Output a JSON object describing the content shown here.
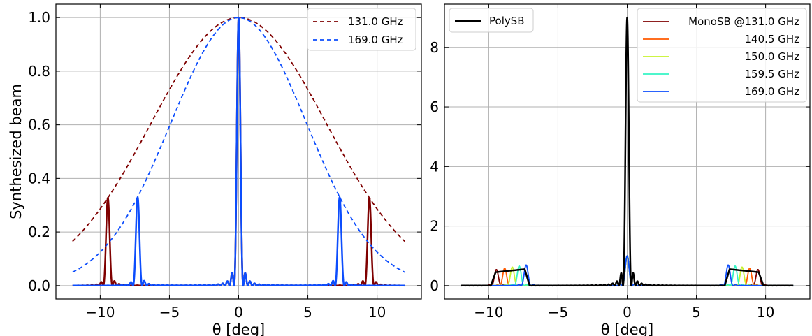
{
  "chart_data": [
    {
      "type": "line",
      "xlabel": "θ [deg]",
      "ylabel": "Synthesized beam",
      "xlim": [
        -13.2,
        13.2
      ],
      "ylim": [
        -0.05,
        1.05
      ],
      "xticks": [
        -10,
        -5,
        0,
        5,
        10
      ],
      "xtick_labels": [
        "−10",
        "−5",
        "0",
        "5",
        "10"
      ],
      "yticks": [
        0.0,
        0.2,
        0.4,
        0.6,
        0.8,
        1.0
      ],
      "ytick_labels": [
        "0.0",
        "0.2",
        "0.4",
        "0.6",
        "0.8",
        "1.0"
      ],
      "grid": true,
      "legend_position": "top-right",
      "series": [
        {
          "name": "131.0 GHz",
          "style": "dashed",
          "color": "#7f0000",
          "kind": "envelope",
          "x": [
            -12,
            -9,
            -6,
            -3,
            0,
            3,
            6,
            9,
            12
          ],
          "values": [
            0.165,
            0.353,
            0.629,
            0.891,
            1.0,
            0.891,
            0.629,
            0.353,
            0.165
          ]
        },
        {
          "name": "169.0 GHz",
          "style": "dashed",
          "color": "#0c4dfd",
          "kind": "envelope",
          "x": [
            -12,
            -9,
            -6,
            -3,
            0,
            3,
            6,
            9,
            12
          ],
          "values": [
            0.05,
            0.184,
            0.462,
            0.824,
            1.0,
            0.824,
            0.462,
            0.184,
            0.05
          ]
        },
        {
          "style": "solid",
          "color": "#7f0000",
          "kind": "peaks",
          "main_peak": 1.0,
          "side_peaks": [
            {
              "x": -9.45,
              "y": 0.33
            },
            {
              "x": 9.45,
              "y": 0.33
            }
          ]
        },
        {
          "style": "solid",
          "color": "#0c4dfd",
          "kind": "peaks",
          "main_peak": 1.0,
          "side_peaks": [
            {
              "x": -7.3,
              "y": 0.33
            },
            {
              "x": 7.3,
              "y": 0.33
            }
          ]
        }
      ]
    },
    {
      "type": "line",
      "xlabel": "θ [deg]",
      "ylabel": "",
      "xlim": [
        -13.2,
        13.2
      ],
      "ylim": [
        -0.45,
        9.45
      ],
      "xticks": [
        -10,
        -5,
        0,
        5,
        10
      ],
      "xtick_labels": [
        "−10",
        "−5",
        "0",
        "5",
        "10"
      ],
      "yticks": [
        0,
        2,
        4,
        6,
        8
      ],
      "ytick_labels": [
        "0",
        "2",
        "4",
        "6",
        "8"
      ],
      "grid": true,
      "legend_position": "top-left and top-right",
      "series": [
        {
          "name": "PolySB",
          "color": "#000000",
          "main_peak": 9.0,
          "plateaus": [
            {
              "x": [
                -9.5,
                -7.4
              ],
              "y": [
                0.45,
                0.55
              ]
            },
            {
              "x": [
                7.4,
                9.5
              ],
              "y": [
                0.55,
                0.45
              ]
            }
          ]
        },
        {
          "name": "MonoSB @131.0 GHz",
          "color": "#7f0000",
          "main_peak": 1.0,
          "side_peak_x": 9.45,
          "side_peak_y": 0.33
        },
        {
          "name": "140.5 GHz",
          "color": "#ff5a00",
          "main_peak": 1.0,
          "side_peak_x": 8.85,
          "side_peak_y": 0.33
        },
        {
          "name": "150.0 GHz",
          "color": "#c6f22a",
          "main_peak": 1.0,
          "side_peak_x": 8.3,
          "side_peak_y": 0.33
        },
        {
          "name": "159.5 GHz",
          "color": "#34f5c4",
          "main_peak": 1.0,
          "side_peak_x": 7.8,
          "side_peak_y": 0.33
        },
        {
          "name": "169.0 GHz",
          "color": "#0c4dfd",
          "main_peak": 1.0,
          "side_peak_x": 7.3,
          "side_peak_y": 0.33
        }
      ]
    }
  ]
}
